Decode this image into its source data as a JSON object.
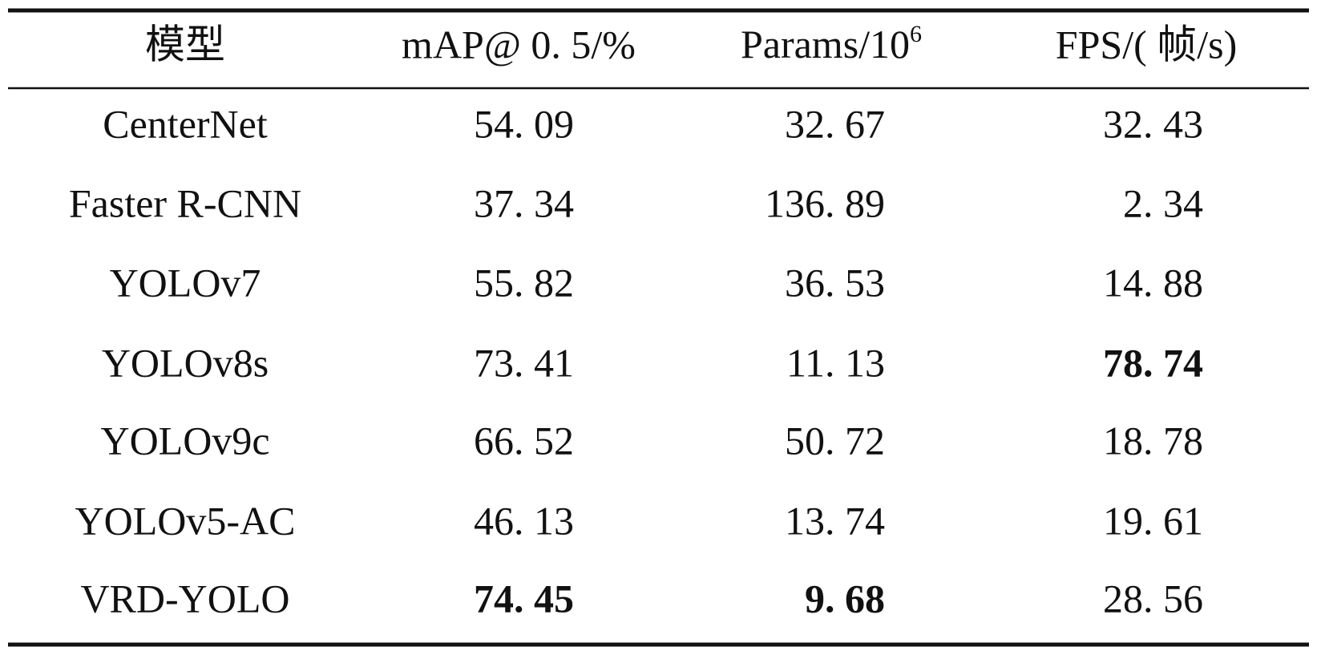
{
  "table": {
    "header": [
      "模型",
      "mAP@ 0. 5/%",
      {
        "text": "Params/10",
        "superscript": "6"
      },
      "FPS/( 帧/s)"
    ],
    "rows": [
      [
        "CenterNet",
        "54. 09",
        "32. 67",
        "32. 43"
      ],
      [
        "Faster R-CNN",
        "37. 34",
        "136. 89",
        "2. 34"
      ],
      [
        "YOLOv7",
        "55. 82",
        "36. 53",
        "14. 88"
      ],
      [
        "YOLOv8s",
        "73. 41",
        "11. 13",
        "78. 74"
      ],
      [
        "YOLOv9c",
        "66. 52",
        "50. 72",
        "18. 78"
      ],
      [
        "YOLOv5-AC",
        "46. 13",
        "13. 74",
        "19. 61"
      ],
      [
        "VRD-YOLO",
        "74. 45",
        "9. 68",
        "28. 56"
      ]
    ],
    "bold": [
      [
        3,
        3
      ],
      [
        6,
        1
      ],
      [
        6,
        2
      ]
    ]
  }
}
